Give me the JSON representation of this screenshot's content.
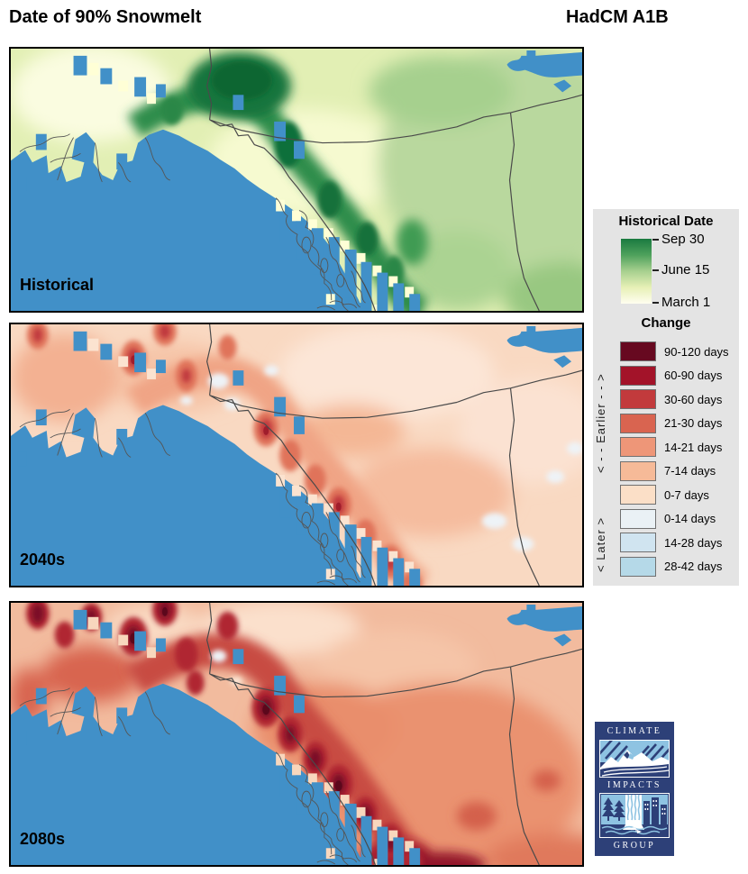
{
  "header": {
    "title": "Date of 90% Snowmelt",
    "model": "HadCM A1B"
  },
  "panels": [
    {
      "label": "Historical"
    },
    {
      "label": "2040s"
    },
    {
      "label": "2080s"
    }
  ],
  "legend": {
    "historical": {
      "title": "Historical Date",
      "ticks": [
        "Sep 30",
        "June 15",
        "March 1"
      ],
      "gradient": [
        "#1a7a40",
        "#4ea15c",
        "#a7d08f",
        "#e7f0b6",
        "#fffef0"
      ]
    },
    "change": {
      "title": "Change",
      "earlier_axis": "< - - Earlier - - >",
      "later_axis": "< Later >",
      "items": [
        {
          "label": "90-120 days",
          "color": "#670920"
        },
        {
          "label": "60-90 days",
          "color": "#a31329"
        },
        {
          "label": "30-60 days",
          "color": "#c23a3c"
        },
        {
          "label": "21-30 days",
          "color": "#d96450"
        },
        {
          "label": "14-21 days",
          "color": "#ee9678"
        },
        {
          "label": "7-14 days",
          "color": "#f6ba98"
        },
        {
          "label": "0-7 days",
          "color": "#fbdfc7"
        },
        {
          "label": "0-14 days",
          "color": "#eaf1f5"
        },
        {
          "label": "14-28 days",
          "color": "#d0e4f0"
        },
        {
          "label": "28-42 days",
          "color": "#b5d9e8"
        }
      ]
    }
  },
  "palette": {
    "ocean": "#4190c8",
    "boundary_line": "#4a4a4a",
    "legend_bg": "#e4e4e4",
    "logo_navy": "#2d4078",
    "logo_blue": "#8ec3e2"
  },
  "logo": {
    "line1": "CLIMATE",
    "line2": "IMPACTS",
    "line3": "GROUP"
  }
}
